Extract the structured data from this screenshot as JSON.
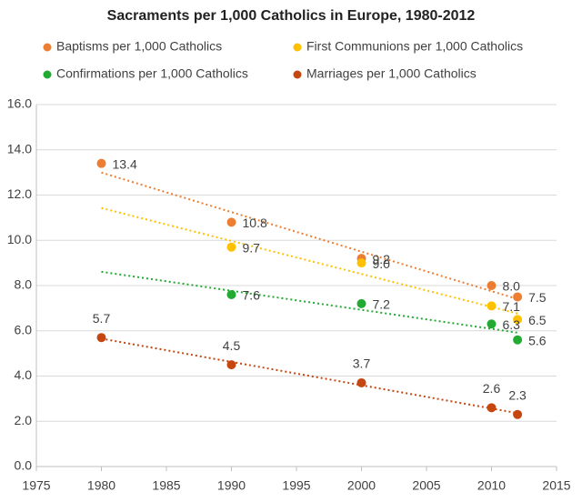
{
  "chart_data": {
    "type": "scatter",
    "title": "Sacraments per 1,000 Catholics in Europe, 1980-2012",
    "x": [
      1980,
      1990,
      2000,
      2010,
      2012
    ],
    "series": [
      {
        "name": "Baptisms per 1,000 Catholics",
        "color": "#ed7d31",
        "values": [
          13.4,
          10.8,
          9.2,
          8.0,
          7.5
        ],
        "value_labels": [
          "13.4",
          "10.8",
          "9.2",
          "8.0",
          "7.5"
        ]
      },
      {
        "name": "First Communions per 1,000 Catholics",
        "color": "#ffc000",
        "values": [
          null,
          9.7,
          9.0,
          7.1,
          6.5
        ],
        "value_labels": [
          null,
          "9.7",
          "9.0",
          "7.1",
          "6.5"
        ]
      },
      {
        "name": "Confirmations per 1,000 Catholics",
        "color": "#22aa33",
        "values": [
          null,
          7.6,
          7.2,
          6.3,
          5.6
        ],
        "value_labels": [
          null,
          "7.6",
          "7.2",
          "6.3",
          "5.6"
        ]
      },
      {
        "name": "Marriages per 1,000 Catholics",
        "color": "#c5470f",
        "values": [
          5.7,
          4.5,
          3.7,
          2.6,
          2.3
        ],
        "value_labels": [
          "5.7",
          "4.5",
          "3.7",
          "2.6",
          "2.3"
        ]
      }
    ],
    "xlim": [
      1975,
      2015
    ],
    "xticks": [
      1975,
      1980,
      1985,
      1990,
      1995,
      2000,
      2005,
      2010,
      2015
    ],
    "ylim": [
      0,
      16
    ],
    "yticks": [
      {
        "value": 0,
        "label": "0.0"
      },
      {
        "value": 2,
        "label": "2.0"
      },
      {
        "value": 4,
        "label": "4.0"
      },
      {
        "value": 6,
        "label": "6.0"
      },
      {
        "value": 8,
        "label": "8.0"
      },
      {
        "value": 10,
        "label": "10.0"
      },
      {
        "value": 12,
        "label": "12.0"
      },
      {
        "value": 14,
        "label": "14.0"
      },
      {
        "value": 16,
        "label": "16.0"
      }
    ],
    "grid": true,
    "trendline": true,
    "legend": "top"
  }
}
